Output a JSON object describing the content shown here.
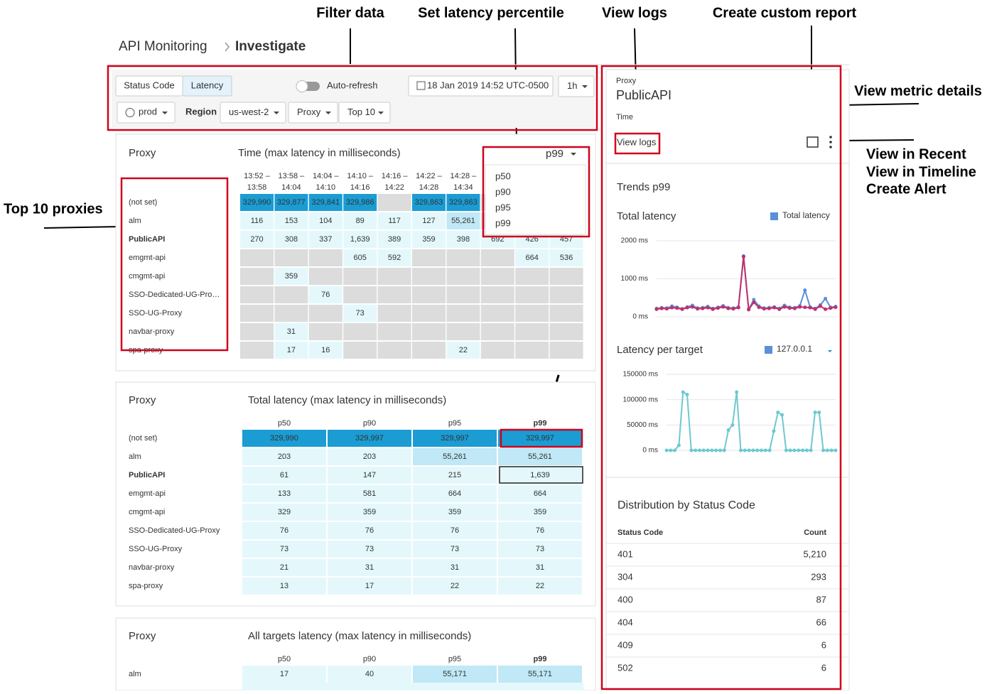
{
  "annotations": {
    "filter_data": "Filter data",
    "set_percentile": "Set latency percentile",
    "view_logs": "View logs",
    "custom_report": "Create custom report",
    "metric_details": "View metric details",
    "more_menu": [
      "View in Recent",
      "View in Timeline",
      "Create Alert"
    ],
    "top_proxies": "Top 10 proxies"
  },
  "breadcrumb": {
    "parent": "API Monitoring",
    "current": "Investigate"
  },
  "filters": {
    "tabs": [
      "Status Code",
      "Latency"
    ],
    "auto_refresh": "Auto-refresh",
    "date": "18 Jan 2019 14:52 UTC-0500",
    "range": "1h",
    "env": "prod",
    "region_label": "Region",
    "region": "us-west-2",
    "dimension": "Proxy",
    "top": "Top 10"
  },
  "heatmap": {
    "row_header": "Proxy",
    "title": "Time (max latency in milliseconds)",
    "percentile": "p99",
    "percentile_options": [
      "p50",
      "p90",
      "p95",
      "p99"
    ],
    "columns": [
      [
        "13:52 –",
        "13:58"
      ],
      [
        "13:58 –",
        "14:04"
      ],
      [
        "14:04 –",
        "14:10"
      ],
      [
        "14:10 –",
        "14:16"
      ],
      [
        "14:16 –",
        "14:22"
      ],
      [
        "14:22 –",
        "14:28"
      ],
      [
        "14:28 –",
        "14:34"
      ],
      null,
      null,
      null
    ],
    "rows": [
      {
        "name": "(not set)",
        "cells": [
          "329,990",
          "329,877",
          "329,841",
          "329,986",
          null,
          "329,863",
          "329,863",
          null,
          null,
          null
        ]
      },
      {
        "name": "alm",
        "cells": [
          "116",
          "153",
          "104",
          "89",
          "117",
          "127",
          "55,261",
          null,
          null,
          null
        ]
      },
      {
        "name": "PublicAPI",
        "cells": [
          "270",
          "308",
          "337",
          "1,639",
          "389",
          "359",
          "398",
          "692",
          "426",
          "457"
        ]
      },
      {
        "name": "emgmt-api",
        "cells": [
          null,
          null,
          null,
          "605",
          "592",
          null,
          null,
          null,
          "664",
          "536"
        ]
      },
      {
        "name": "cmgmt-api",
        "cells": [
          null,
          "359",
          null,
          null,
          null,
          null,
          null,
          null,
          null,
          null
        ]
      },
      {
        "name": "SSO-Dedicated-UG-Pro…",
        "cells": [
          null,
          null,
          "76",
          null,
          null,
          null,
          null,
          null,
          null,
          null
        ]
      },
      {
        "name": "SSO-UG-Proxy",
        "cells": [
          null,
          null,
          null,
          "73",
          null,
          null,
          null,
          null,
          null,
          null
        ]
      },
      {
        "name": "navbar-proxy",
        "cells": [
          null,
          "31",
          null,
          null,
          null,
          null,
          null,
          null,
          null,
          null
        ]
      },
      {
        "name": "spa-proxy",
        "cells": [
          null,
          "17",
          "16",
          null,
          null,
          null,
          "22",
          null,
          null,
          null
        ]
      }
    ]
  },
  "total_latency": {
    "row_header": "Proxy",
    "title": "Total latency (max latency in milliseconds)",
    "columns": [
      "p50",
      "p90",
      "p95",
      "p99"
    ],
    "rows": [
      {
        "name": "(not set)",
        "cells": [
          "329,990",
          "329,997",
          "329,997",
          "329,997"
        ]
      },
      {
        "name": "alm",
        "cells": [
          "203",
          "203",
          "55,261",
          "55,261"
        ]
      },
      {
        "name": "PublicAPI",
        "cells": [
          "61",
          "147",
          "215",
          "1,639"
        ]
      },
      {
        "name": "emgmt-api",
        "cells": [
          "133",
          "581",
          "664",
          "664"
        ]
      },
      {
        "name": "cmgmt-api",
        "cells": [
          "329",
          "359",
          "359",
          "359"
        ]
      },
      {
        "name": "SSO-Dedicated-UG-Proxy",
        "cells": [
          "76",
          "76",
          "76",
          "76"
        ]
      },
      {
        "name": "SSO-UG-Proxy",
        "cells": [
          "73",
          "73",
          "73",
          "73"
        ]
      },
      {
        "name": "navbar-proxy",
        "cells": [
          "21",
          "31",
          "31",
          "31"
        ]
      },
      {
        "name": "spa-proxy",
        "cells": [
          "13",
          "17",
          "22",
          "22"
        ]
      }
    ]
  },
  "all_targets": {
    "row_header": "Proxy",
    "title": "All targets latency (max latency in milliseconds)",
    "columns": [
      "p50",
      "p90",
      "p95",
      "p99"
    ],
    "rows": [
      {
        "name": "alm",
        "cells": [
          "17",
          "40",
          "55,171",
          "55,171"
        ]
      }
    ]
  },
  "detail": {
    "label": "Proxy",
    "name": "PublicAPI",
    "time_label": "Time",
    "view_logs": "View logs",
    "trends": "Trends p99",
    "total_chart": {
      "type": "line",
      "title": "Total latency",
      "ylim": [
        0,
        2000
      ],
      "yticks": [
        {
          "value": 0,
          "label": "0 ms"
        },
        {
          "value": 1000,
          "label": "1000 ms"
        },
        {
          "value": 2000,
          "label": "2000 ms"
        }
      ],
      "series": [
        {
          "name": "Total latency",
          "color": "#5b8fd8",
          "values": [
            220,
            240,
            230,
            280,
            250,
            210,
            260,
            300,
            230,
            240,
            270,
            220,
            250,
            290,
            240,
            230,
            260,
            1600,
            200,
            450,
            280,
            230,
            240,
            260,
            220,
            300,
            250,
            240,
            290,
            700,
            260,
            220,
            310,
            480,
            250,
            270
          ]
        },
        {
          "color": "#c2306b",
          "values": [
            200,
            220,
            210,
            240,
            230,
            200,
            240,
            260,
            210,
            220,
            240,
            200,
            230,
            260,
            220,
            210,
            240,
            1580,
            190,
            380,
            250,
            210,
            220,
            240,
            200,
            260,
            230,
            220,
            260,
            250,
            240,
            200,
            280,
            200,
            230,
            250
          ]
        }
      ]
    },
    "target_chart": {
      "type": "line",
      "title": "Latency per target",
      "ylim": [
        0,
        150000
      ],
      "yticks": [
        {
          "value": 0,
          "label": "0 ms"
        },
        {
          "value": 50000,
          "label": "50000 ms"
        },
        {
          "value": 100000,
          "label": "100000 ms"
        },
        {
          "value": 150000,
          "label": "150000 ms"
        }
      ],
      "series": [
        {
          "name": "127.0.0.1",
          "color": "#6cc9d0",
          "values": [
            0,
            0,
            0,
            10000,
            115000,
            110000,
            0,
            0,
            0,
            0,
            0,
            0,
            0,
            0,
            0,
            40000,
            50000,
            115000,
            0,
            0,
            0,
            0,
            0,
            0,
            0,
            0,
            38000,
            75000,
            70000,
            0,
            0,
            0,
            0,
            0,
            0,
            0,
            75000,
            75000,
            0,
            0,
            0,
            0
          ]
        }
      ]
    },
    "distribution": {
      "title": "Distribution by Status Code",
      "headers": [
        "Status Code",
        "Count"
      ],
      "rows": [
        [
          "401",
          "5,210"
        ],
        [
          "304",
          "293"
        ],
        [
          "400",
          "87"
        ],
        [
          "404",
          "66"
        ],
        [
          "409",
          "6"
        ],
        [
          "502",
          "6"
        ]
      ]
    }
  }
}
